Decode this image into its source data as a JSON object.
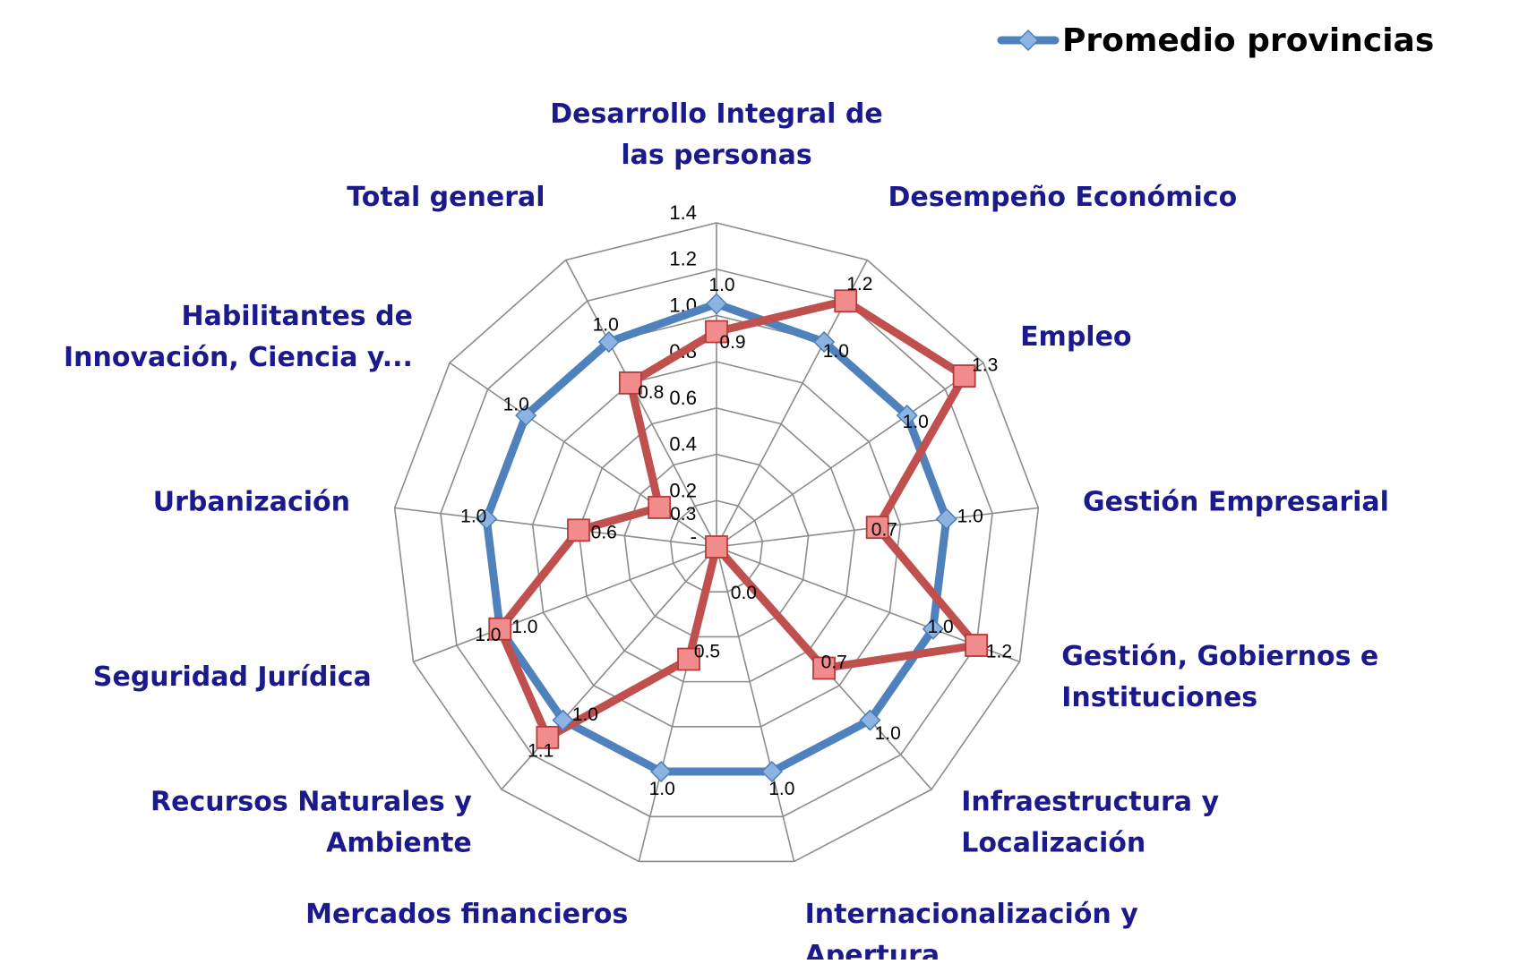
{
  "chart_data": {
    "type": "radar",
    "categories": [
      [
        "Desarrollo Integral de",
        "las personas"
      ],
      [
        "Desempeño Económico"
      ],
      [
        "Empleo"
      ],
      [
        "Gestión Empresarial"
      ],
      [
        "Gestión, Gobiernos e",
        "Instituciones"
      ],
      [
        "Infraestructura y",
        "Localización"
      ],
      [
        "Internacionalización y",
        "Apertura"
      ],
      [
        "Mercados financieros"
      ],
      [
        "Recursos Naturales y",
        "Ambiente"
      ],
      [
        "Seguridad Jurídica"
      ],
      [
        "Urbanización"
      ],
      [
        "Habilitantes de",
        "Innovación, Ciencia y..."
      ],
      [
        "Total general"
      ]
    ],
    "rlim": [
      0,
      1.4
    ],
    "tick_values": [
      0,
      0.2,
      0.4,
      0.6,
      0.8,
      1.0,
      1.2,
      1.4
    ],
    "tick_labels": [
      "-",
      "0.2",
      "0.4",
      "0.6",
      "0.8",
      "1.0",
      "1.2",
      "1.4"
    ],
    "grid": true,
    "legend_position": "top-right",
    "series": [
      {
        "name": "Promedio provincias",
        "color": "#4F81BD",
        "marker": "diamond",
        "values": [
          1.05,
          1.0,
          1.0,
          1.0,
          1.0,
          1.0,
          1.0,
          1.0,
          1.0,
          1.0,
          1.0,
          1.0,
          1.0
        ]
      },
      {
        "name": "",
        "color": "#C0504D",
        "marker": "square",
        "values": [
          0.93,
          1.2,
          1.3,
          0.7,
          1.2,
          0.7,
          0.0,
          0.5,
          1.1,
          1.0,
          0.6,
          0.3,
          0.8
        ]
      }
    ],
    "data_labels": [
      {
        "category": 0,
        "texts": [
          "1.0",
          "0.9"
        ]
      },
      {
        "category": 1,
        "texts": [
          "1.2",
          "1.0"
        ]
      },
      {
        "category": 2,
        "texts": [
          "1.3",
          "1.0"
        ]
      },
      {
        "category": 3,
        "texts": [
          "1.0",
          "0.7"
        ]
      },
      {
        "category": 4,
        "texts": [
          "1.2",
          "1.0"
        ]
      },
      {
        "category": 5,
        "texts": [
          "1.0",
          "0.7"
        ]
      },
      {
        "category": 6,
        "texts": [
          "1.0",
          "0.0"
        ]
      },
      {
        "category": 7,
        "texts": [
          "1.0",
          "0.5"
        ]
      },
      {
        "category": 8,
        "texts": [
          "1.1",
          "1.0"
        ]
      },
      {
        "category": 9,
        "texts": [
          "1.0",
          "1.0"
        ]
      },
      {
        "category": 10,
        "texts": [
          "1.0",
          "0.6"
        ]
      },
      {
        "category": 11,
        "texts": [
          "1.0",
          "0.3"
        ]
      },
      {
        "category": 12,
        "texts": [
          "1.0",
          "0.8"
        ]
      }
    ],
    "colors": {
      "grid": "#8C8C8C",
      "category_label": "#1A1A8C"
    }
  }
}
